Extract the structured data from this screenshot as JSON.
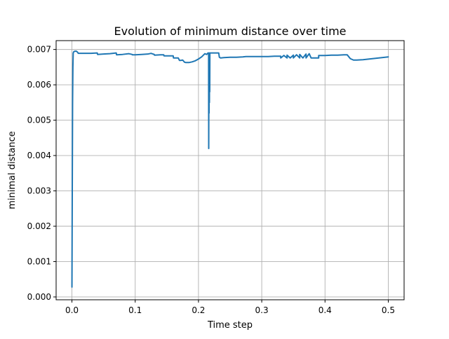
{
  "chart_data": {
    "type": "line",
    "title": "Evolution of minimum distance over time",
    "xlabel": "Time step",
    "ylabel": "minimal distance",
    "xlim": [
      -0.025,
      0.525
    ],
    "ylim": [
      -8e-05,
      0.00725
    ],
    "xticks": [
      0.0,
      0.1,
      0.2,
      0.3,
      0.4,
      0.5
    ],
    "xtick_labels": [
      "0.0",
      "0.1",
      "0.2",
      "0.3",
      "0.4",
      "0.5"
    ],
    "yticks": [
      0.0,
      0.001,
      0.002,
      0.003,
      0.004,
      0.005,
      0.006,
      0.007
    ],
    "ytick_labels": [
      "0.000",
      "0.001",
      "0.002",
      "0.003",
      "0.004",
      "0.005",
      "0.006",
      "0.007"
    ],
    "grid": true,
    "line_color": "#1f77b4",
    "series": [
      {
        "x": [
          0.0,
          0.0005,
          0.001,
          0.0015,
          0.002,
          0.003,
          0.005,
          0.007,
          0.009,
          0.01,
          0.02,
          0.03,
          0.04,
          0.0405,
          0.05,
          0.06,
          0.065,
          0.07,
          0.0705,
          0.08,
          0.09,
          0.095,
          0.0955,
          0.1,
          0.11,
          0.12,
          0.125,
          0.13,
          0.1305,
          0.14,
          0.145,
          0.1455,
          0.155,
          0.16,
          0.1605,
          0.168,
          0.17,
          0.172,
          0.175,
          0.178,
          0.18,
          0.185,
          0.19,
          0.195,
          0.2,
          0.205,
          0.21,
          0.213,
          0.215,
          0.216,
          0.2162,
          0.2165,
          0.2168,
          0.217,
          0.2173,
          0.2175,
          0.2178,
          0.218,
          0.2185,
          0.219,
          0.2195,
          0.22,
          0.225,
          0.23,
          0.232,
          0.233,
          0.235,
          0.24,
          0.25,
          0.26,
          0.27,
          0.275,
          0.28,
          0.29,
          0.3,
          0.31,
          0.32,
          0.33,
          0.33,
          0.335,
          0.34,
          0.34,
          0.345,
          0.35,
          0.35,
          0.355,
          0.36,
          0.36,
          0.365,
          0.37,
          0.37,
          0.375,
          0.378,
          0.38,
          0.385,
          0.39,
          0.39,
          0.4,
          0.41,
          0.42,
          0.43,
          0.435,
          0.44,
          0.445,
          0.45,
          0.46,
          0.47,
          0.48,
          0.49,
          0.5
        ],
        "y": [
          0.00028,
          0.003,
          0.0055,
          0.0065,
          0.0069,
          0.00694,
          0.00695,
          0.00695,
          0.00692,
          0.00689,
          0.00689,
          0.00689,
          0.0069,
          0.00686,
          0.00687,
          0.00688,
          0.00689,
          0.0069,
          0.00685,
          0.00686,
          0.00688,
          0.00686,
          0.00685,
          0.00685,
          0.00686,
          0.00687,
          0.00689,
          0.00686,
          0.00684,
          0.00685,
          0.00685,
          0.00682,
          0.00682,
          0.00682,
          0.00676,
          0.00676,
          0.00669,
          0.00669,
          0.0067,
          0.00664,
          0.00663,
          0.00663,
          0.00665,
          0.00668,
          0.00673,
          0.00679,
          0.00688,
          0.00686,
          0.0069,
          0.0069,
          0.0042,
          0.0069,
          0.0052,
          0.0069,
          0.0055,
          0.0069,
          0.0058,
          0.0069,
          0.0069,
          0.0069,
          0.0069,
          0.0069,
          0.0069,
          0.0069,
          0.0069,
          0.00678,
          0.00676,
          0.00677,
          0.00678,
          0.00678,
          0.00679,
          0.0068,
          0.0068,
          0.0068,
          0.0068,
          0.0068,
          0.00681,
          0.00681,
          0.00676,
          0.00683,
          0.00676,
          0.00684,
          0.00676,
          0.00684,
          0.00676,
          0.00685,
          0.00676,
          0.00686,
          0.00676,
          0.00687,
          0.00676,
          0.00688,
          0.00676,
          0.00676,
          0.00676,
          0.00676,
          0.00683,
          0.00683,
          0.00684,
          0.00684,
          0.00685,
          0.00685,
          0.00674,
          0.0067,
          0.0067,
          0.00671,
          0.00673,
          0.00675,
          0.00677,
          0.00679
        ]
      }
    ]
  }
}
